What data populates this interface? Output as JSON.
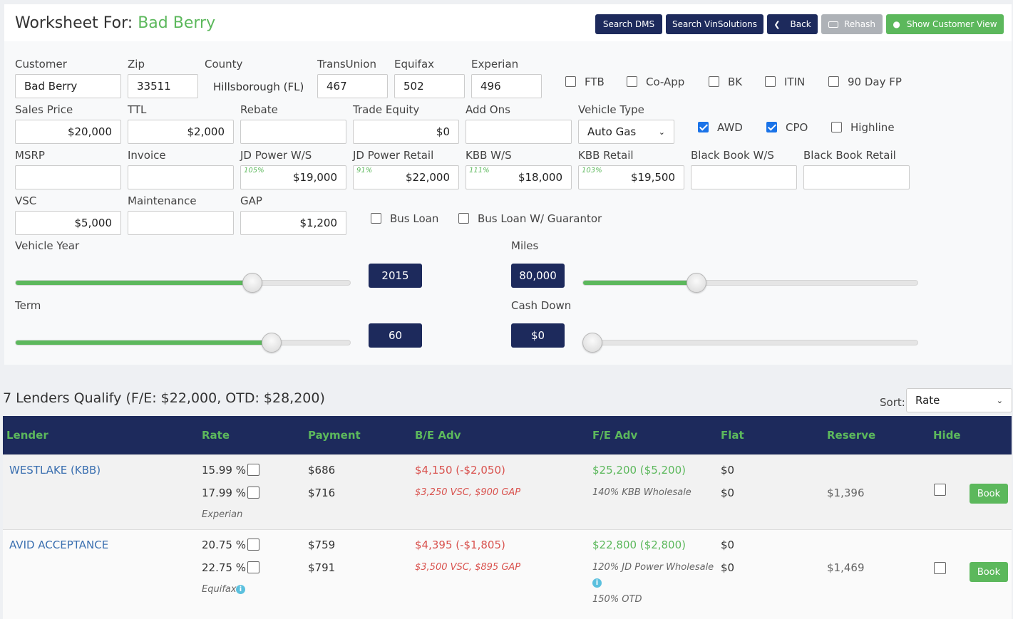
{
  "header": {
    "title_prefix": "Worksheet For:",
    "customer_name": "Bad Berry",
    "buttons": {
      "search_dms": "Search DMS",
      "search_vin": "Search VinSolutions",
      "back": "Back",
      "rehash": "Rehash",
      "customer_view": "Show Customer View"
    }
  },
  "form": {
    "labels": {
      "customer": "Customer",
      "zip": "Zip",
      "county": "County",
      "transunion": "TransUnion",
      "equifax": "Equifax",
      "experian": "Experian",
      "sales_price": "Sales Price",
      "ttl": "TTL",
      "rebate": "Rebate",
      "trade_equity": "Trade Equity",
      "add_ons": "Add Ons",
      "vehicle_type": "Vehicle Type",
      "msrp": "MSRP",
      "invoice": "Invoice",
      "jd_ws": "JD Power W/S",
      "jd_retail": "JD Power Retail",
      "kbb_ws": "KBB W/S",
      "kbb_retail": "KBB Retail",
      "bb_ws": "Black Book W/S",
      "bb_retail": "Black Book Retail",
      "vsc": "VSC",
      "maintenance": "Maintenance",
      "gap": "GAP",
      "vehicle_year": "Vehicle Year",
      "miles": "Miles",
      "term": "Term",
      "cash_down": "Cash Down"
    },
    "values": {
      "customer": "Bad Berry",
      "zip": "33511",
      "county": "Hillsborough (FL)",
      "transunion": "467",
      "equifax": "502",
      "experian": "496",
      "sales_price": "$20,000",
      "ttl": "$2,000",
      "rebate": "",
      "trade_equity": "$0",
      "add_ons": "",
      "vehicle_type": "Auto Gas",
      "msrp": "",
      "invoice": "",
      "jd_ws": "$19,000",
      "jd_ws_pct": "105%",
      "jd_retail": "$22,000",
      "jd_retail_pct": "91%",
      "kbb_ws": "$18,000",
      "kbb_ws_pct": "111%",
      "kbb_retail": "$19,500",
      "kbb_retail_pct": "103%",
      "bb_ws": "",
      "bb_retail": "",
      "vsc": "$5,000",
      "maintenance": "",
      "gap": "$1,200"
    },
    "checkboxes": {
      "ftb": "FTB",
      "coapp": "Co-App",
      "bk": "BK",
      "itin": "ITIN",
      "day90": "90 Day FP",
      "awd": "AWD",
      "cpo": "CPO",
      "highline": "Highline",
      "bus_loan": "Bus Loan",
      "bus_loan_g": "Bus Loan W/ Guarantor"
    },
    "checked": {
      "awd": true,
      "cpo": true
    },
    "sliders": {
      "vehicle_year": {
        "value": "2015",
        "level": 0.72
      },
      "miles": {
        "value": "80,000",
        "level": 0.33
      },
      "term": {
        "value": "60",
        "level": 0.78
      },
      "cash_down": {
        "value": "$0",
        "level": 0.0
      }
    }
  },
  "results": {
    "summary": "7 Lenders Qualify (F/E: $22,000, OTD: $28,200)",
    "sort_label": "Sort:",
    "sort_value": "Rate",
    "columns": {
      "lender": "Lender",
      "rate": "Rate",
      "payment": "Payment",
      "be_adv": "B/E Adv",
      "fe_adv": "F/E Adv",
      "flat": "Flat",
      "reserve": "Reserve",
      "hide": "Hide"
    },
    "rows": [
      {
        "lender": "WESTLAKE (KBB)",
        "rate1": "15.99 %",
        "rate2": "17.99 %",
        "bureau": "Experian",
        "pay1": "$686",
        "pay2": "$716",
        "be1": "$4,150 (-$2,050)",
        "be2": "$3,250 VSC, $900 GAP",
        "fe1": "$25,200 ($5,200)",
        "fe2": "140% KBB Wholesale",
        "fe3": "",
        "flat1": "$0",
        "flat2": "$0",
        "reserve": "$1,396",
        "book": "Book"
      },
      {
        "lender": "AVID ACCEPTANCE",
        "rate1": "20.75 %",
        "rate2": "22.75 %",
        "bureau": "Equifax",
        "pay1": "$759",
        "pay2": "$791",
        "be1": "$4,395 (-$1,805)",
        "be2": "$3,500 VSC, $895 GAP",
        "fe1": "$22,800 ($2,800)",
        "fe2": "120% JD Power Wholesale",
        "fe3": "150% OTD",
        "flat1": "$0",
        "flat2": "$0",
        "reserve": "$1,469",
        "book": "Book"
      }
    ]
  }
}
